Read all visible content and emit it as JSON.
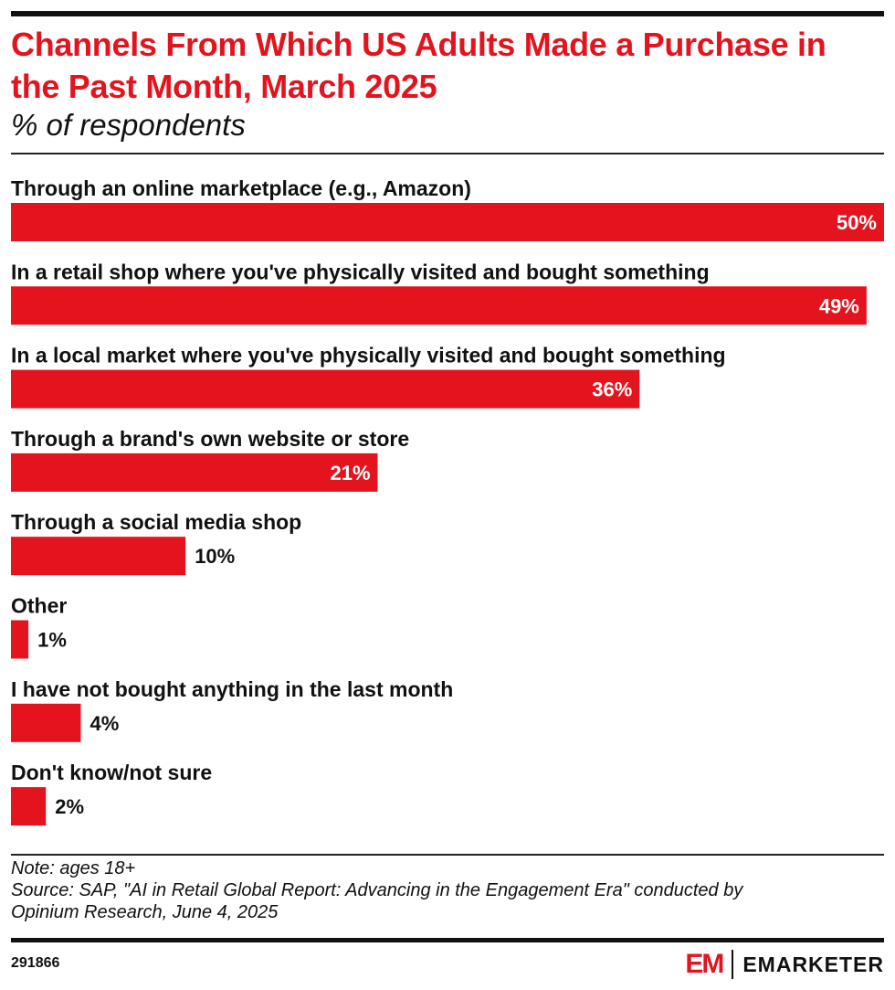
{
  "header": {
    "title": "Channels From Which US Adults Made a Purchase in the Past Month, March 2025",
    "subtitle": "% of respondents"
  },
  "colors": {
    "accent": "#e3141e",
    "bar": "#e3141e",
    "text": "#111111",
    "label_inside": "#ffffff"
  },
  "chart_data": {
    "type": "bar",
    "orientation": "horizontal",
    "categories": [
      "Through an online marketplace (e.g., Amazon)",
      "In a retail shop where you've physically visited and bought something",
      "In a local market where you've physically visited and bought something",
      "Through a brand's own website or store",
      "Through a social media shop",
      "Other",
      "I have not bought anything in the last month",
      "Don't know/not sure"
    ],
    "values": [
      50,
      49,
      36,
      21,
      10,
      1,
      4,
      2
    ],
    "data_labels": [
      "50%",
      "49%",
      "36%",
      "21%",
      "10%",
      "1%",
      "4%",
      "2%"
    ],
    "title": "Channels From Which US Adults Made a Purchase in the Past Month, March 2025",
    "subtitle": "% of respondents",
    "xlim": [
      0,
      50
    ],
    "grid": false,
    "legend": "none"
  },
  "footer": {
    "note": "Note: ages 18+",
    "source_line1": "Source: SAP, \"AI in Retail Global Report: Advancing in the Engagement Era\" conducted by",
    "source_line2": "Opinium Research, June 4, 2025",
    "chart_id": "291866",
    "logo_mark": "EM",
    "logo_text": "EMARKETER"
  }
}
